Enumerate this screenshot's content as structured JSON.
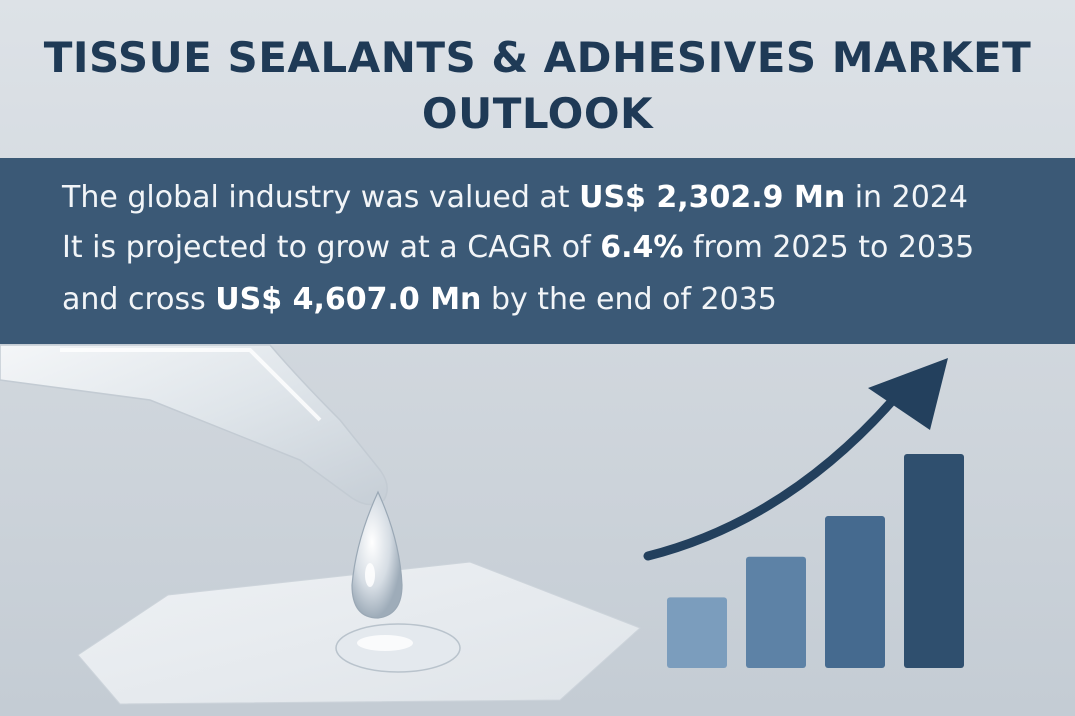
{
  "title": {
    "line1": "TISSUE SEALANTS & ADHESIVES MARKET",
    "line2": "OUTLOOK"
  },
  "summary": {
    "line1": {
      "pre": "The global industry was valued at ",
      "value": "US$ 2,302.9 Mn",
      "post": " in 2024"
    },
    "line2": {
      "pre": "It is projected to grow at a CAGR of ",
      "value": "6.4%",
      "post": " from 2025 to 2035"
    },
    "line3": {
      "pre": "and cross ",
      "value": "US$ 4,607.0 Mn",
      "post": " by the end of 2035"
    }
  },
  "illustration": {
    "left": "adhesive-dropper-on-gauze",
    "right": "rising-bar-chart-with-arrow",
    "bar_levels": [
      0.33,
      0.52,
      0.71,
      1.0
    ],
    "bar_colors": [
      "#7b9dbd",
      "#5d82a6",
      "#456a8f",
      "#2f4f6e"
    ],
    "arrow_color": "#23405d"
  }
}
